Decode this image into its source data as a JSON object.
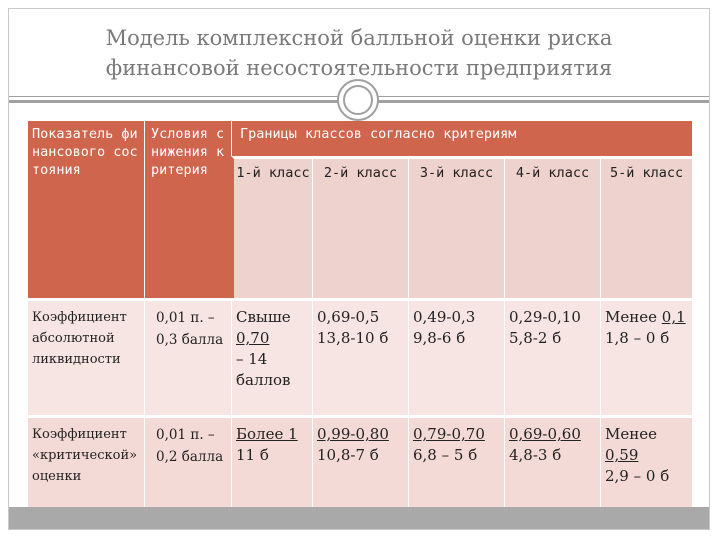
{
  "slide": {
    "title_line1": "Модель комплексной балльной оценки риска",
    "title_line2": "финансовой несостоятельности предприятия"
  },
  "table": {
    "header": {
      "indicator": "Показатель финансового состояния",
      "condition": "Условия снижения критерия",
      "bounds": "Границы классов согласно критериям",
      "classes": [
        "1-й класс",
        "2-й класс",
        "3-й класс",
        "4-й класс",
        "5-й класс"
      ]
    },
    "rows": [
      {
        "indicator": "Коэффициент абсолютной ликвидности",
        "condition": "0,01 п. – 0,3 балла",
        "c1a": "Свыше",
        "c1b": "0,70",
        "c1c": "– 14 баллов",
        "c2a": "0,69-0,5",
        "c2b": "13,8-10 б",
        "c3a": "0,49-0,3",
        "c3b": "9,8-6 б",
        "c4a": "0,29-0,10",
        "c4b": "5,8-2 б",
        "c5a": "Менее",
        "c5u": "0,1",
        "c5b": "1,8 – 0 б"
      },
      {
        "indicator": "Коэффициент «критической» оценки",
        "condition": "0,01 п. – 0,2 балла",
        "c1a": "Более 1",
        "c1b": "11 б",
        "c2a": "0,99-0,80",
        "c2b": "10,8-7 б",
        "c3a": "0,79-0,70",
        "c3b": "6,8 – 5 б",
        "c4a": "0,69-0,60",
        "c4b": "4,8-3 б",
        "c5a": "Менее",
        "c5u": "0,59",
        "c5b": "2,9 – 0 б"
      }
    ]
  }
}
